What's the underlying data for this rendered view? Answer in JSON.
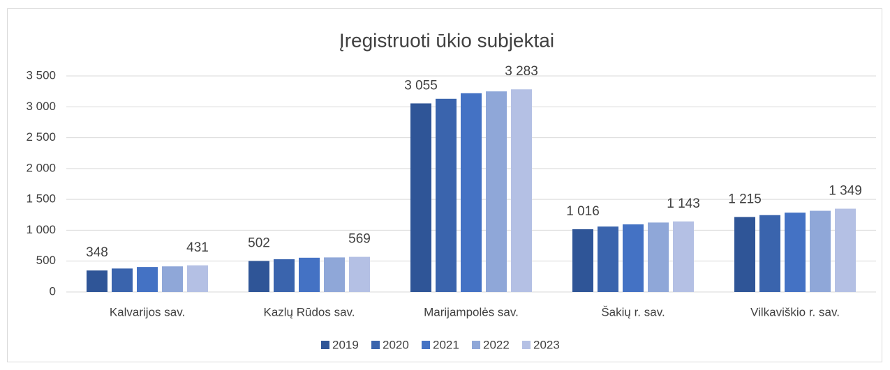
{
  "chart_data": {
    "type": "bar",
    "title": "Įregistruoti ūkio subjektai",
    "categories": [
      "Kalvarijos sav.",
      "Kazlų Rūdos sav.",
      "Marijampolės sav.",
      "Šakių r. sav.",
      "Vilkaviškio r. sav."
    ],
    "series": [
      {
        "name": "2019",
        "color": "#2f5597",
        "values": [
          348,
          502,
          3055,
          1016,
          1215
        ],
        "value_labels": [
          "348",
          "502",
          "3 055",
          "1 016",
          "1 215"
        ]
      },
      {
        "name": "2020",
        "color": "#3a64ad",
        "values": [
          380,
          530,
          3130,
          1060,
          1245
        ]
      },
      {
        "name": "2021",
        "color": "#4472c4",
        "values": [
          405,
          555,
          3220,
          1095,
          1285
        ]
      },
      {
        "name": "2022",
        "color": "#8fa7d8",
        "values": [
          415,
          560,
          3250,
          1125,
          1315
        ]
      },
      {
        "name": "2023",
        "color": "#b4c0e4",
        "values": [
          431,
          569,
          3283,
          1143,
          1349
        ],
        "value_labels": [
          "431",
          "569",
          "3 283",
          "1 143",
          "1 349"
        ]
      }
    ],
    "ylim": [
      0,
      3500
    ],
    "yticks": [
      0,
      500,
      {
        "value": 1000,
        "label": "1 000"
      },
      {
        "value": 1500,
        "label": "1 500"
      },
      {
        "value": 2000,
        "label": "2 000"
      },
      {
        "value": 2500,
        "label": "2 500"
      },
      {
        "value": 3000,
        "label": "3 000"
      },
      {
        "value": 3500,
        "label": "3 500"
      }
    ],
    "grid": true,
    "legend": "bottom"
  }
}
